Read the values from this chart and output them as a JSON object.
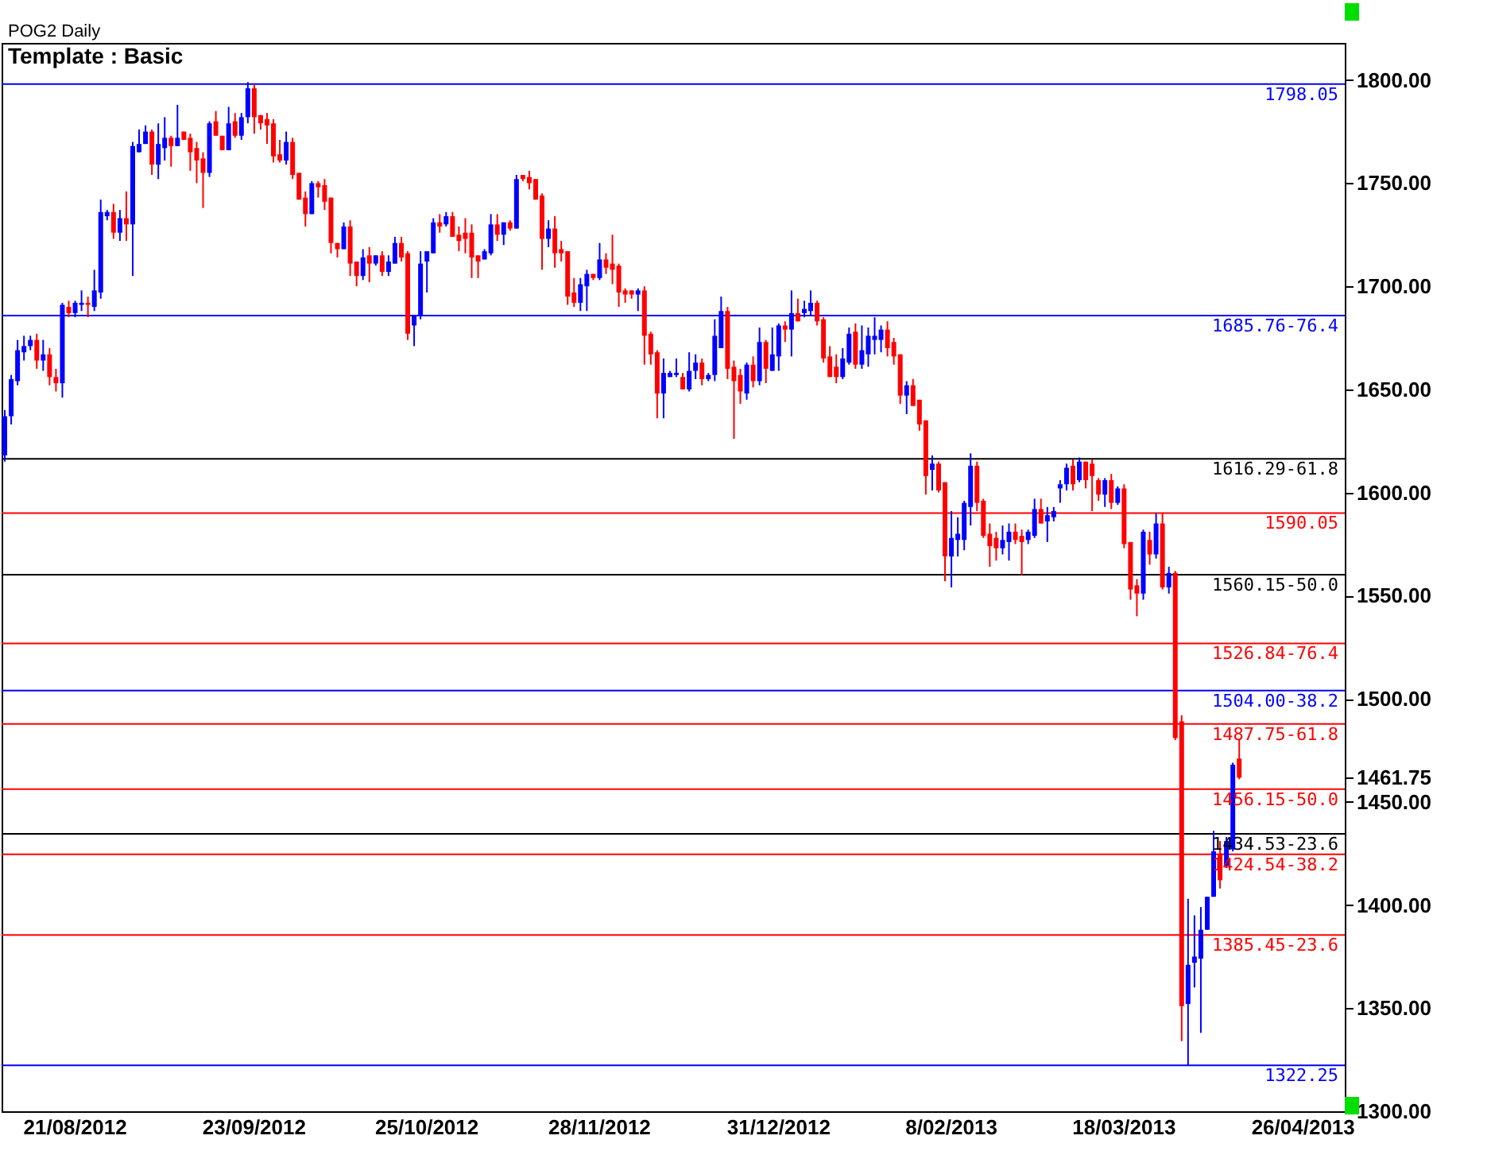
{
  "chart_data": {
    "type": "candlestick",
    "title": "POG2 Daily",
    "subtitle": "Template : Basic",
    "categories": [
      null,
      null,
      null,
      null,
      null,
      null,
      null,
      null,
      null,
      null,
      null,
      "21/08/2012",
      null,
      null,
      null,
      null,
      null,
      null,
      null,
      null,
      null,
      null,
      null,
      null,
      null,
      null,
      null,
      null,
      null,
      null,
      null,
      null,
      null,
      null,
      null,
      null,
      null,
      null,
      null,
      "23/09/2012",
      null,
      null,
      null,
      null,
      null,
      null,
      null,
      null,
      null,
      null,
      null,
      null,
      null,
      null,
      null,
      null,
      null,
      null,
      null,
      null,
      null,
      null,
      null,
      null,
      null,
      null,
      "25/10/2012",
      null,
      null,
      null,
      null,
      null,
      null,
      null,
      null,
      null,
      null,
      null,
      null,
      null,
      null,
      null,
      null,
      null,
      null,
      null,
      null,
      null,
      null,
      null,
      null,
      null,
      null,
      "28/11/2012",
      null,
      null,
      null,
      null,
      null,
      null,
      null,
      null,
      null,
      null,
      null,
      null,
      null,
      null,
      null,
      null,
      null,
      null,
      null,
      null,
      null,
      null,
      null,
      null,
      null,
      null,
      null,
      "31/12/2012",
      null,
      null,
      null,
      null,
      null,
      null,
      null,
      null,
      null,
      null,
      null,
      null,
      null,
      null,
      null,
      null,
      null,
      null,
      null,
      null,
      null,
      null,
      null,
      null,
      null,
      null,
      "8/02/2013",
      null,
      null,
      null,
      null,
      null,
      null,
      null,
      null,
      null,
      null,
      null,
      null,
      null,
      null,
      null,
      null,
      null,
      null,
      null,
      null,
      null,
      null,
      null,
      null,
      null,
      null,
      "18/03/2013",
      null,
      null,
      null,
      null,
      null,
      null,
      null,
      null,
      null,
      null,
      null,
      null,
      null,
      null,
      null,
      null,
      null,
      null,
      null,
      null,
      null,
      null,
      null,
      null,
      null,
      null,
      null,
      "26/04/2013",
      null,
      null,
      null,
      null,
      null,
      null
    ],
    "ohlc": [
      [
        1618,
        1640,
        1615,
        1637
      ],
      [
        1637,
        1657,
        1633,
        1655
      ],
      [
        1654,
        1674,
        1652,
        1669
      ],
      [
        1668,
        1676,
        1664,
        1671
      ],
      [
        1671,
        1676,
        1669,
        1674
      ],
      [
        1674,
        1677,
        1660,
        1664
      ],
      [
        1664,
        1674,
        1659,
        1667
      ],
      [
        1667,
        1670,
        1652,
        1656
      ],
      [
        1656,
        1660,
        1649,
        1653
      ],
      [
        1653,
        1692,
        1646,
        1691
      ],
      [
        1690,
        1693,
        1685,
        1687
      ],
      [
        1687,
        1693,
        1685,
        1692
      ],
      [
        1691,
        1698,
        1688,
        1692
      ],
      [
        1692,
        1695,
        1685,
        1691
      ],
      [
        1690,
        1708,
        1688,
        1698
      ],
      [
        1697,
        1742,
        1694,
        1736
      ],
      [
        1734,
        1737,
        1732,
        1736
      ],
      [
        1736,
        1740,
        1723,
        1726
      ],
      [
        1726,
        1737,
        1722,
        1733
      ],
      [
        1733,
        1746,
        1722,
        1730
      ],
      [
        1730,
        1770,
        1705,
        1768
      ],
      [
        1765,
        1776,
        1765,
        1769
      ],
      [
        1769,
        1778,
        1769,
        1775
      ],
      [
        1775,
        1776,
        1754,
        1759
      ],
      [
        1759,
        1779,
        1752,
        1769
      ],
      [
        1767,
        1782,
        1761,
        1772
      ],
      [
        1772,
        1773,
        1758,
        1768
      ],
      [
        1768,
        1788,
        1768,
        1772
      ],
      [
        1775,
        1775,
        1771,
        1771
      ],
      [
        1772,
        1774,
        1756,
        1765
      ],
      [
        1767,
        1770,
        1750,
        1761
      ],
      [
        1762,
        1765,
        1738,
        1755
      ],
      [
        1755,
        1780,
        1753,
        1779
      ],
      [
        1780,
        1785,
        1773,
        1773
      ],
      [
        1773,
        1773,
        1766,
        1766
      ],
      [
        1766,
        1787,
        1766,
        1779
      ],
      [
        1780,
        1784,
        1772,
        1773
      ],
      [
        1773,
        1784,
        1771,
        1782
      ],
      [
        1782,
        1799,
        1779,
        1796
      ],
      [
        1796,
        1798,
        1774,
        1782
      ],
      [
        1783,
        1783,
        1776,
        1779
      ],
      [
        1781,
        1784,
        1769,
        1778
      ],
      [
        1779,
        1781,
        1760,
        1763
      ],
      [
        1764,
        1771,
        1760,
        1761
      ],
      [
        1761,
        1775,
        1759,
        1770
      ],
      [
        1770,
        1772,
        1752,
        1754
      ],
      [
        1755,
        1755,
        1742,
        1742
      ],
      [
        1743,
        1746,
        1729,
        1735
      ],
      [
        1735,
        1751,
        1735,
        1750
      ],
      [
        1750,
        1751,
        1743,
        1748
      ],
      [
        1749,
        1752,
        1737,
        1741
      ],
      [
        1743,
        1743,
        1716,
        1721
      ],
      [
        1721,
        1721,
        1714,
        1718
      ],
      [
        1718,
        1731,
        1718,
        1729
      ],
      [
        1729,
        1732,
        1705,
        1711
      ],
      [
        1712,
        1712,
        1700,
        1705
      ],
      [
        1705,
        1718,
        1703,
        1714
      ],
      [
        1715,
        1719,
        1702,
        1711
      ],
      [
        1711,
        1715,
        1710,
        1715
      ],
      [
        1715,
        1717,
        1705,
        1707
      ],
      [
        1707,
        1715,
        1705,
        1712
      ],
      [
        1711,
        1724,
        1711,
        1721
      ],
      [
        1721,
        1724,
        1712,
        1714
      ],
      [
        1716,
        1717,
        1674,
        1677
      ],
      [
        1681,
        1686,
        1671,
        1686
      ],
      [
        1686,
        1717,
        1684,
        1711
      ],
      [
        1712,
        1717,
        1697,
        1717
      ],
      [
        1716,
        1733,
        1716,
        1731
      ],
      [
        1731,
        1735,
        1726,
        1729
      ],
      [
        1730,
        1736,
        1729,
        1734
      ],
      [
        1734,
        1736,
        1724,
        1724
      ],
      [
        1725,
        1729,
        1717,
        1722
      ],
      [
        1726,
        1733,
        1716,
        1723
      ],
      [
        1726,
        1730,
        1704,
        1714
      ],
      [
        1715,
        1715,
        1704,
        1712
      ],
      [
        1713,
        1718,
        1713,
        1717
      ],
      [
        1716,
        1735,
        1715,
        1730
      ],
      [
        1730,
        1735,
        1722,
        1725
      ],
      [
        1725,
        1731,
        1720,
        1731
      ],
      [
        1731,
        1732,
        1727,
        1728
      ],
      [
        1728,
        1754,
        1728,
        1752
      ],
      [
        1754,
        1754,
        1751,
        1752
      ],
      [
        1753,
        1756,
        1747,
        1750
      ],
      [
        1752,
        1752,
        1742,
        1742
      ],
      [
        1744,
        1745,
        1708,
        1723
      ],
      [
        1723,
        1732,
        1719,
        1728
      ],
      [
        1728,
        1734,
        1709,
        1716
      ],
      [
        1718,
        1722,
        1712,
        1716
      ],
      [
        1717,
        1717,
        1691,
        1695
      ],
      [
        1697,
        1704,
        1690,
        1692
      ],
      [
        1692,
        1704,
        1688,
        1701
      ],
      [
        1700,
        1708,
        1688,
        1706
      ],
      [
        1706,
        1706,
        1703,
        1704
      ],
      [
        1704,
        1721,
        1703,
        1713
      ],
      [
        1713,
        1716,
        1706,
        1709
      ],
      [
        1711,
        1725,
        1701,
        1708
      ],
      [
        1710,
        1711,
        1690,
        1697
      ],
      [
        1698,
        1699,
        1692,
        1696
      ],
      [
        1698,
        1698,
        1694,
        1696
      ],
      [
        1696,
        1699,
        1688,
        1698
      ],
      [
        1698,
        1700,
        1662,
        1676
      ],
      [
        1677,
        1678,
        1662,
        1667
      ],
      [
        1668,
        1669,
        1636,
        1648
      ],
      [
        1648,
        1665,
        1636,
        1658
      ],
      [
        1656,
        1659,
        1656,
        1658
      ],
      [
        1657,
        1665,
        1656,
        1658
      ],
      [
        1656,
        1658,
        1650,
        1650
      ],
      [
        1650,
        1668,
        1649,
        1659
      ],
      [
        1659,
        1667,
        1655,
        1663
      ],
      [
        1663,
        1665,
        1652,
        1655
      ],
      [
        1655,
        1658,
        1654,
        1657
      ],
      [
        1657,
        1684,
        1654,
        1676
      ],
      [
        1670,
        1695,
        1670,
        1688
      ],
      [
        1688,
        1690,
        1655,
        1660
      ],
      [
        1661,
        1664,
        1626,
        1654
      ],
      [
        1657,
        1660,
        1643,
        1649
      ],
      [
        1648,
        1663,
        1645,
        1662
      ],
      [
        1662,
        1666,
        1651,
        1654
      ],
      [
        1654,
        1680,
        1652,
        1673
      ],
      [
        1673,
        1674,
        1653,
        1660
      ],
      [
        1659,
        1680,
        1659,
        1667
      ],
      [
        1666,
        1682,
        1659,
        1681
      ],
      [
        1681,
        1683,
        1673,
        1679
      ],
      [
        1679,
        1698,
        1666,
        1687
      ],
      [
        1687,
        1694,
        1683,
        1683
      ],
      [
        1687,
        1693,
        1685,
        1689
      ],
      [
        1688,
        1698,
        1686,
        1692
      ],
      [
        1692,
        1693,
        1681,
        1683
      ],
      [
        1684,
        1685,
        1663,
        1665
      ],
      [
        1666,
        1671,
        1656,
        1656
      ],
      [
        1661,
        1667,
        1653,
        1656
      ],
      [
        1656,
        1670,
        1655,
        1665
      ],
      [
        1663,
        1680,
        1662,
        1677
      ],
      [
        1678,
        1682,
        1660,
        1662
      ],
      [
        1662,
        1681,
        1660,
        1669
      ],
      [
        1667,
        1680,
        1661,
        1676
      ],
      [
        1674,
        1685,
        1667,
        1676
      ],
      [
        1674,
        1681,
        1668,
        1679
      ],
      [
        1679,
        1683,
        1666,
        1670
      ],
      [
        1673,
        1675,
        1662,
        1666
      ],
      [
        1667,
        1667,
        1643,
        1647
      ],
      [
        1647,
        1654,
        1638,
        1652
      ],
      [
        1652,
        1655,
        1642,
        1642
      ],
      [
        1645,
        1645,
        1630,
        1633
      ],
      [
        1635,
        1635,
        1599,
        1608
      ],
      [
        1611,
        1618,
        1601,
        1614
      ],
      [
        1614,
        1615,
        1600,
        1601
      ],
      [
        1605,
        1605,
        1557,
        1569
      ],
      [
        1569,
        1591,
        1554,
        1578
      ],
      [
        1577,
        1588,
        1569,
        1580
      ],
      [
        1577,
        1596,
        1572,
        1595
      ],
      [
        1593,
        1619,
        1584,
        1613
      ],
      [
        1613,
        1615,
        1591,
        1595
      ],
      [
        1596,
        1597,
        1578,
        1579
      ],
      [
        1580,
        1585,
        1564,
        1574
      ],
      [
        1578,
        1581,
        1567,
        1573
      ],
      [
        1573,
        1584,
        1570,
        1577
      ],
      [
        1576,
        1585,
        1567,
        1581
      ],
      [
        1581,
        1585,
        1575,
        1577
      ],
      [
        1579,
        1582,
        1560,
        1576
      ],
      [
        1577,
        1582,
        1575,
        1581
      ],
      [
        1579,
        1597,
        1578,
        1592
      ],
      [
        1592,
        1597,
        1585,
        1585
      ],
      [
        1586,
        1593,
        1576,
        1589
      ],
      [
        1588,
        1593,
        1586,
        1591
      ],
      [
        1602,
        1606,
        1595,
        1604
      ],
      [
        1604,
        1614,
        1601,
        1612
      ],
      [
        1613,
        1616,
        1601,
        1604
      ],
      [
        1606,
        1617,
        1605,
        1615
      ],
      [
        1615,
        1615,
        1602,
        1606
      ],
      [
        1614,
        1616,
        1591,
        1608
      ],
      [
        1606,
        1607,
        1596,
        1599
      ],
      [
        1599,
        1607,
        1593,
        1606
      ],
      [
        1606,
        1609,
        1592,
        1595
      ],
      [
        1595,
        1603,
        1594,
        1602
      ],
      [
        1602,
        1604,
        1573,
        1575
      ],
      [
        1576,
        1576,
        1548,
        1553
      ],
      [
        1555,
        1558,
        1540,
        1551
      ],
      [
        1551,
        1582,
        1548,
        1581
      ],
      [
        1577,
        1581,
        1565,
        1570
      ],
      [
        1570,
        1590,
        1568,
        1585
      ],
      [
        1585,
        1590,
        1553,
        1554
      ],
      [
        1554,
        1564,
        1551,
        1561
      ],
      [
        1561,
        1562,
        1480,
        1481
      ],
      [
        1489,
        1492,
        1334,
        1351
      ],
      [
        1352,
        1403,
        1322.25,
        1371
      ],
      [
        1372,
        1395,
        1360,
        1375
      ],
      [
        1374,
        1399,
        1338,
        1388
      ],
      [
        1388,
        1404,
        1388,
        1404
      ],
      [
        1404,
        1436,
        1404,
        1426
      ],
      [
        1425,
        1431,
        1408,
        1412
      ],
      [
        1419,
        1433,
        1418,
        1431
      ],
      [
        1427,
        1469,
        1426,
        1468
      ],
      [
        1471,
        1480,
        1461,
        1461.75
      ],
      null,
      null,
      null,
      null,
      null,
      null,
      null,
      null,
      null,
      null,
      null,
      null,
      null,
      null,
      null,
      null
    ],
    "colors": [
      "#0000ff",
      "#0000ff",
      "#0000ff",
      "#0000ff",
      "#0000ff",
      "#ff0000",
      "#0000ff",
      "#ff0000",
      "#ff0000",
      "#0000ff",
      "#ff0000",
      "#0000ff",
      "#0000ff",
      "#ff0000",
      "#0000ff",
      "#0000ff",
      "#0000ff",
      "#ff0000",
      "#0000ff",
      "#ff0000",
      "#0000ff",
      "#0000ff",
      "#0000ff",
      "#ff0000",
      "#0000ff",
      "#0000ff",
      "#ff0000",
      "#0000ff",
      "#ff0000",
      "#ff0000",
      "#ff0000",
      "#ff0000",
      "#0000ff",
      "#ff0000",
      "#ff0000",
      "#0000ff",
      "#ff0000",
      "#0000ff",
      "#0000ff",
      "#ff0000",
      "#ff0000",
      "#ff0000",
      "#ff0000",
      "#ff0000",
      "#0000ff",
      "#ff0000",
      "#ff0000",
      "#ff0000",
      "#0000ff",
      "#ff0000",
      "#ff0000",
      "#ff0000",
      "#ff0000",
      "#0000ff",
      "#ff0000",
      "#ff0000",
      "#0000ff",
      "#ff0000",
      "#0000ff",
      "#ff0000",
      "#0000ff",
      "#0000ff",
      "#ff0000",
      "#ff0000",
      "#0000ff",
      "#0000ff",
      "#0000ff",
      "#0000ff",
      "#ff0000",
      "#0000ff",
      "#ff0000",
      "#ff0000",
      "#ff0000",
      "#ff0000",
      "#ff0000",
      "#0000ff",
      "#0000ff",
      "#ff0000",
      "#0000ff",
      "#ff0000",
      "#0000ff",
      "#ff0000",
      "#ff0000",
      "#ff0000",
      "#ff0000",
      "#0000ff",
      "#ff0000",
      "#ff0000",
      "#ff0000",
      "#ff0000",
      "#0000ff",
      "#0000ff",
      "#ff0000",
      "#0000ff",
      "#ff0000",
      "#ff0000",
      "#ff0000",
      "#ff0000",
      "#ff0000",
      "#0000ff",
      "#ff0000",
      "#ff0000",
      "#ff0000",
      "#0000ff",
      "#0000ff",
      "#0000ff",
      "#ff0000",
      "#0000ff",
      "#0000ff",
      "#ff0000",
      "#0000ff",
      "#0000ff",
      "#0000ff",
      "#ff0000",
      "#ff0000",
      "#ff0000",
      "#0000ff",
      "#ff0000",
      "#0000ff",
      "#ff0000",
      "#0000ff",
      "#0000ff",
      "#ff0000",
      "#0000ff",
      "#ff0000",
      "#0000ff",
      "#0000ff",
      "#ff0000",
      "#ff0000",
      "#ff0000",
      "#ff0000",
      "#0000ff",
      "#0000ff",
      "#ff0000",
      "#0000ff",
      "#0000ff",
      "#0000ff",
      "#0000ff",
      "#ff0000",
      "#ff0000",
      "#ff0000",
      "#0000ff",
      "#ff0000",
      "#ff0000",
      "#ff0000",
      "#0000ff",
      "#ff0000",
      "#ff0000",
      "#0000ff",
      "#0000ff",
      "#0000ff",
      "#0000ff",
      "#ff0000",
      "#ff0000",
      "#ff0000",
      "#ff0000",
      "#0000ff",
      "#0000ff",
      "#ff0000",
      "#ff0000",
      "#0000ff",
      "#0000ff",
      "#ff0000",
      "#0000ff",
      "#0000ff",
      "#0000ff",
      "#0000ff",
      "#ff0000",
      "#0000ff",
      "#ff0000",
      "#ff0000",
      "#ff0000",
      "#0000ff",
      "#ff0000",
      "#0000ff",
      "#ff0000",
      "#ff0000",
      "#ff0000",
      "#0000ff",
      "#ff0000",
      "#0000ff",
      "#ff0000",
      "#0000ff",
      "#ff0000",
      "#ff0000",
      "#0000ff",
      "#0000ff",
      "#0000ff",
      "#0000ff",
      "#0000ff",
      "#ff0000",
      "#0000ff",
      "#0000ff",
      "#ff0000",
      null,
      null,
      null,
      null,
      null,
      null,
      null,
      null,
      null,
      null,
      null,
      null,
      null,
      null,
      null,
      null
    ],
    "ylim": [
      1300,
      1818
    ],
    "yticks": [
      {
        "value": 1300,
        "label": "1300.00"
      },
      {
        "value": 1350,
        "label": "1350.00"
      },
      {
        "value": 1400,
        "label": "1400.00"
      },
      {
        "value": 1450,
        "label": "1450.00"
      },
      {
        "value": 1461.75,
        "label": "1461.75"
      },
      {
        "value": 1500,
        "label": "1500.00"
      },
      {
        "value": 1550,
        "label": "1550.00"
      },
      {
        "value": 1600,
        "label": "1600.00"
      },
      {
        "value": 1650,
        "label": "1650.00"
      },
      {
        "value": 1700,
        "label": "1700.00"
      },
      {
        "value": 1750,
        "label": "1750.00"
      },
      {
        "value": 1800,
        "label": "1800.00"
      }
    ],
    "ref_lines": [
      {
        "axis": "y",
        "value": 1798.05,
        "label": "1798.05",
        "color": "#0000ff"
      },
      {
        "axis": "y",
        "value": 1685.76,
        "label": "1685.76-76.4",
        "color": "#0000ff"
      },
      {
        "axis": "y",
        "value": 1616.29,
        "label": "1616.29-61.8",
        "color": "#000000"
      },
      {
        "axis": "y",
        "value": 1590.05,
        "label": "1590.05",
        "color": "#ff0000"
      },
      {
        "axis": "y",
        "value": 1560.15,
        "label": "1560.15-50.0",
        "color": "#000000"
      },
      {
        "axis": "y",
        "value": 1526.84,
        "label": "1526.84-76.4",
        "color": "#ff0000"
      },
      {
        "axis": "y",
        "value": 1504.0,
        "label": "1504.00-38.2",
        "color": "#0000ff"
      },
      {
        "axis": "y",
        "value": 1487.75,
        "label": "1487.75-61.8",
        "color": "#ff0000"
      },
      {
        "axis": "y",
        "value": 1456.15,
        "label": "1456.15-50.0",
        "color": "#ff0000"
      },
      {
        "axis": "y",
        "value": 1434.53,
        "label": "1434.53-23.6",
        "color": "#000000"
      },
      {
        "axis": "y",
        "value": 1424.54,
        "label": "1424.54-38.2",
        "color": "#ff0000"
      },
      {
        "axis": "y",
        "value": 1385.45,
        "label": "1385.45-23.6",
        "color": "#ff0000"
      },
      {
        "axis": "y",
        "value": 1322.25,
        "label": "1322.25",
        "color": "#0000ff"
      }
    ],
    "grid": false
  }
}
